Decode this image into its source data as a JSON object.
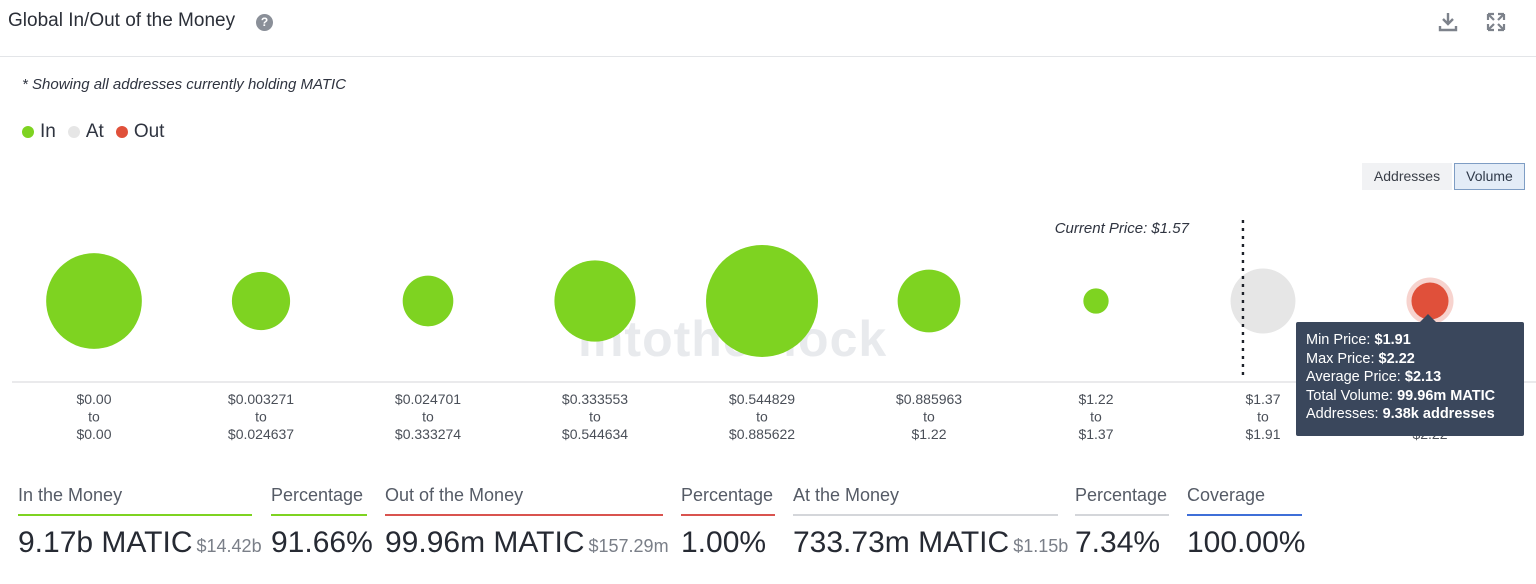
{
  "header": {
    "title": "Global In/Out of the Money",
    "help_icon": "question-circle-icon",
    "download_icon": "download-icon",
    "expand_icon": "expand-icon"
  },
  "note": "* Showing all addresses currently holding MATIC",
  "legend": [
    {
      "label": "In",
      "color": "#7ed321"
    },
    {
      "label": "At",
      "color": "#e6e6e6"
    },
    {
      "label": "Out",
      "color": "#e0503a"
    }
  ],
  "toggle": {
    "addresses": "Addresses",
    "volume": "Volume",
    "active": "Volume"
  },
  "watermark": "intotheblock",
  "chart_data": {
    "type": "scatter",
    "current_price_label": "Current Price: $1.57",
    "buckets": [
      {
        "from": "$0.00",
        "to_word": "to",
        "to": "$0.00",
        "status": "In",
        "volume_rel": 1.0
      },
      {
        "from": "$0.003271",
        "to_word": "to",
        "to": "$0.024637",
        "status": "In",
        "volume_rel": 0.37
      },
      {
        "from": "$0.024701",
        "to_word": "to",
        "to": "$0.333274",
        "status": "In",
        "volume_rel": 0.28
      },
      {
        "from": "$0.333553",
        "to_word": "to",
        "to": "$0.544634",
        "status": "In",
        "volume_rel": 0.72
      },
      {
        "from": "$0.544829",
        "to_word": "to",
        "to": "$0.885622",
        "status": "In",
        "volume_rel": 1.37
      },
      {
        "from": "$0.885963",
        "to_word": "to",
        "to": "$1.22",
        "status": "In",
        "volume_rel": 0.43
      },
      {
        "from": "$1.22",
        "to_word": "to",
        "to": "$1.37",
        "status": "In",
        "volume_rel": 0.07
      },
      {
        "from": "$1.37",
        "to_word": "to",
        "to": "$1.91",
        "status": "At",
        "volume_rel": 0.46
      },
      {
        "from": "$1.91",
        "to_word": "to",
        "to": "$2.22",
        "status": "Out",
        "volume_rel": 0.15,
        "highlighted": true
      }
    ],
    "current_price_after_bucket": 6
  },
  "tooltip": {
    "rows": [
      {
        "label": "Min Price:",
        "value": "$1.91"
      },
      {
        "label": "Max Price:",
        "value": "$2.22"
      },
      {
        "label": "Average Price:",
        "value": "$2.13"
      },
      {
        "label": "Total Volume:",
        "value": "99.96m MATIC"
      },
      {
        "label": "Addresses:",
        "value": "9.38k addresses"
      }
    ]
  },
  "stats": [
    {
      "label": "In the Money",
      "value": "9.17b MATIC",
      "sub": "$14.42b",
      "color": "#7ed321"
    },
    {
      "label": "Percentage",
      "value": "91.66%",
      "sub": "",
      "color": "#7ed321"
    },
    {
      "label": "Out of the Money",
      "value": "99.96m MATIC",
      "sub": "$157.29m",
      "color": "#d9534f"
    },
    {
      "label": "Percentage",
      "value": "1.00%",
      "sub": "",
      "color": "#d9534f"
    },
    {
      "label": "At the Money",
      "value": "733.73m MATIC",
      "sub": "$1.15b",
      "color": "#d4d6da"
    },
    {
      "label": "Percentage",
      "value": "7.34%",
      "sub": "",
      "color": "#d4d6da"
    },
    {
      "label": "Coverage",
      "value": "100.00%",
      "sub": "",
      "color": "#3f6fd8"
    }
  ]
}
